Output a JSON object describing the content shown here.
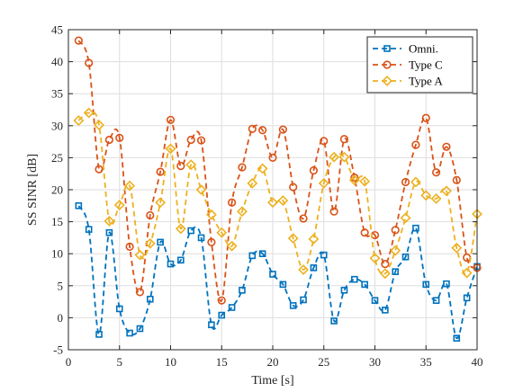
{
  "chart_data": {
    "type": "line",
    "xlabel": "Time [s]",
    "ylabel": "SS SINR [dB]",
    "xlim": [
      0,
      40
    ],
    "ylim": [
      -5,
      45
    ],
    "xticks": [
      "0",
      "5",
      "10",
      "15",
      "20",
      "25",
      "30",
      "35",
      "40"
    ],
    "yticks": [
      "-5",
      "0",
      "5",
      "10",
      "15",
      "20",
      "25",
      "30",
      "35",
      "40",
      "45"
    ],
    "grid": true,
    "legend_position": "top-right",
    "x": [
      1,
      2,
      3,
      4,
      5,
      6,
      7,
      8,
      9,
      10,
      11,
      12,
      13,
      14,
      15,
      16,
      17,
      18,
      19,
      20,
      21,
      22,
      23,
      24,
      25,
      26,
      27,
      28,
      29,
      30,
      31,
      32,
      33,
      34,
      35,
      36,
      37,
      38,
      39,
      40
    ],
    "series": [
      {
        "name": "Omni.",
        "color": "#0072BD",
        "marker": "square",
        "values": [
          17.5,
          13.8,
          -2.6,
          13.3,
          1.4,
          -2.4,
          -1.7,
          2.9,
          11.8,
          8.4,
          9.0,
          13.6,
          12.5,
          -1.1,
          0.4,
          1.6,
          4.3,
          9.7,
          10.0,
          6.8,
          5.2,
          1.9,
          2.8,
          7.8,
          9.8,
          -0.5,
          4.3,
          6.0,
          5.2,
          2.7,
          1.2,
          7.2,
          9.5,
          14.0,
          5.2,
          2.7,
          5.3,
          -3.2,
          3.1,
          8.0
        ]
      },
      {
        "name": "Type C",
        "color": "#D95319",
        "marker": "circle",
        "values": [
          43.3,
          39.8,
          23.2,
          27.8,
          28.1,
          11.1,
          4.0,
          16.0,
          22.8,
          30.9,
          23.7,
          27.8,
          27.7,
          11.8,
          2.7,
          18.0,
          23.5,
          29.5,
          29.3,
          25.0,
          29.4,
          20.4,
          15.5,
          23.0,
          27.6,
          16.6,
          27.9,
          21.9,
          13.3,
          12.9,
          8.4,
          13.7,
          21.2,
          27.0,
          31.2,
          22.7,
          26.7,
          21.5,
          9.4,
          7.8
        ]
      },
      {
        "name": "Type A",
        "color": "#EDB120",
        "marker": "diamond",
        "values": [
          30.8,
          32.0,
          30.1,
          15.1,
          17.6,
          20.6,
          9.8,
          11.6,
          18.0,
          26.4,
          13.9,
          23.9,
          20.0,
          16.1,
          13.3,
          11.2,
          16.6,
          21.0,
          23.3,
          18.0,
          18.3,
          12.4,
          7.5,
          12.3,
          21.0,
          25.1,
          25.1,
          21.5,
          21.3,
          9.3,
          6.9,
          10.5,
          15.6,
          21.2,
          19.1,
          18.6,
          19.8,
          10.9,
          7.0,
          16.2
        ]
      }
    ]
  }
}
